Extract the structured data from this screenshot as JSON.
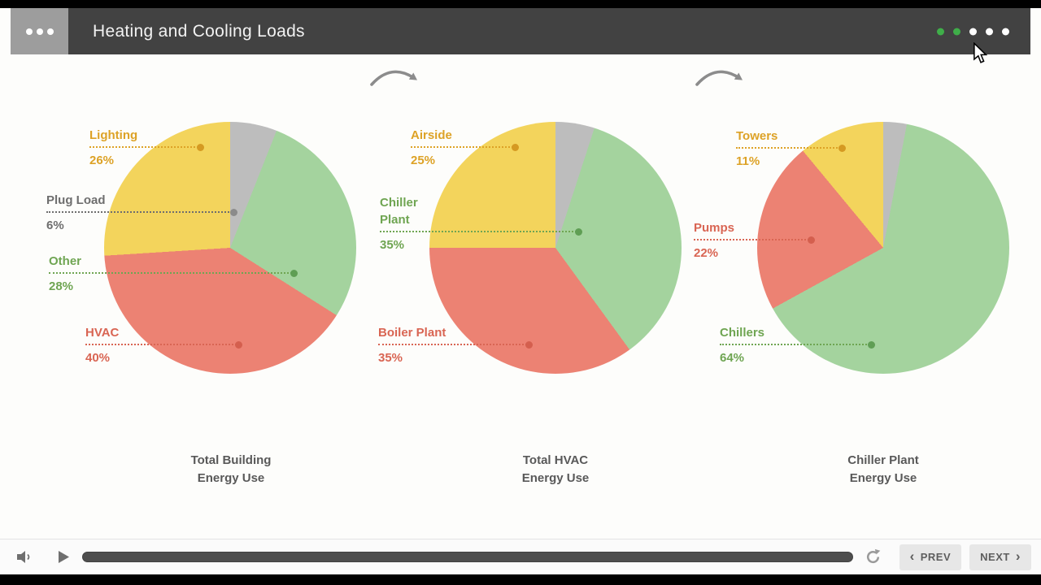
{
  "header": {
    "title": "Heating and Cooling Loads",
    "menu_icon": "ellipsis-menu-icon",
    "progress_dots": {
      "total": 5,
      "active": 2,
      "active_color": "#3fae49",
      "inactive_color": "#ffffff"
    }
  },
  "stage": {
    "arrow_icons": [
      "curved-right-arrow",
      "curved-right-arrow"
    ]
  },
  "chart_data": [
    {
      "type": "pie",
      "title": [
        "Total Building",
        "Energy Use"
      ],
      "slices": [
        {
          "label": "Plug Load",
          "value": 6,
          "pct": "6%",
          "color": "#bdbdbd",
          "label_color": "#6e6e6e",
          "marker_color": "#8b8b8b"
        },
        {
          "label": "Other",
          "value": 28,
          "pct": "28%",
          "color": "#a4d39e",
          "label_color": "#6fa552",
          "marker_color": "#5f9e54"
        },
        {
          "label": "HVAC",
          "value": 40,
          "pct": "40%",
          "color": "#ec8273",
          "label_color": "#d96553",
          "marker_color": "#d45f4e"
        },
        {
          "label": "Lighting",
          "value": 26,
          "pct": "26%",
          "color": "#f3d45c",
          "label_color": "#dda226",
          "marker_color": "#d59a22"
        }
      ]
    },
    {
      "type": "pie",
      "title": [
        "Total HVAC",
        "Energy Use"
      ],
      "slices": [
        {
          "label": "",
          "value": 5,
          "color": "#bdbdbd",
          "labeled": false
        },
        {
          "label": "Chiller Plant",
          "value": 35,
          "pct": "35%",
          "color": "#a4d39e",
          "label_color": "#6fa552",
          "marker_color": "#5f9e54"
        },
        {
          "label": "Boiler Plant",
          "value": 35,
          "pct": "35%",
          "color": "#ec8273",
          "label_color": "#d96553",
          "marker_color": "#d45f4e"
        },
        {
          "label": "Airside",
          "value": 25,
          "pct": "25%",
          "color": "#f3d45c",
          "label_color": "#dda226",
          "marker_color": "#d59a22"
        }
      ]
    },
    {
      "type": "pie",
      "title": [
        "Chiller Plant",
        "Energy Use"
      ],
      "slices": [
        {
          "label": "",
          "value": 3,
          "color": "#bdbdbd",
          "labeled": false
        },
        {
          "label": "Chillers",
          "value": 64,
          "pct": "64%",
          "color": "#a4d39e",
          "label_color": "#6fa552",
          "marker_color": "#5f9e54"
        },
        {
          "label": "Pumps",
          "value": 22,
          "pct": "22%",
          "color": "#ec8273",
          "label_color": "#d96553",
          "marker_color": "#d45f4e"
        },
        {
          "label": "Towers",
          "value": 11,
          "pct": "11%",
          "color": "#f3d45c",
          "label_color": "#dda226",
          "marker_color": "#d59a22"
        }
      ]
    }
  ],
  "player": {
    "volume_icon": "speaker-icon",
    "play_icon": "play-icon",
    "replay_icon": "replay-icon",
    "prev_chevron": "‹",
    "prev_label": "PREV",
    "next_label": "NEXT",
    "next_chevron": "›"
  }
}
